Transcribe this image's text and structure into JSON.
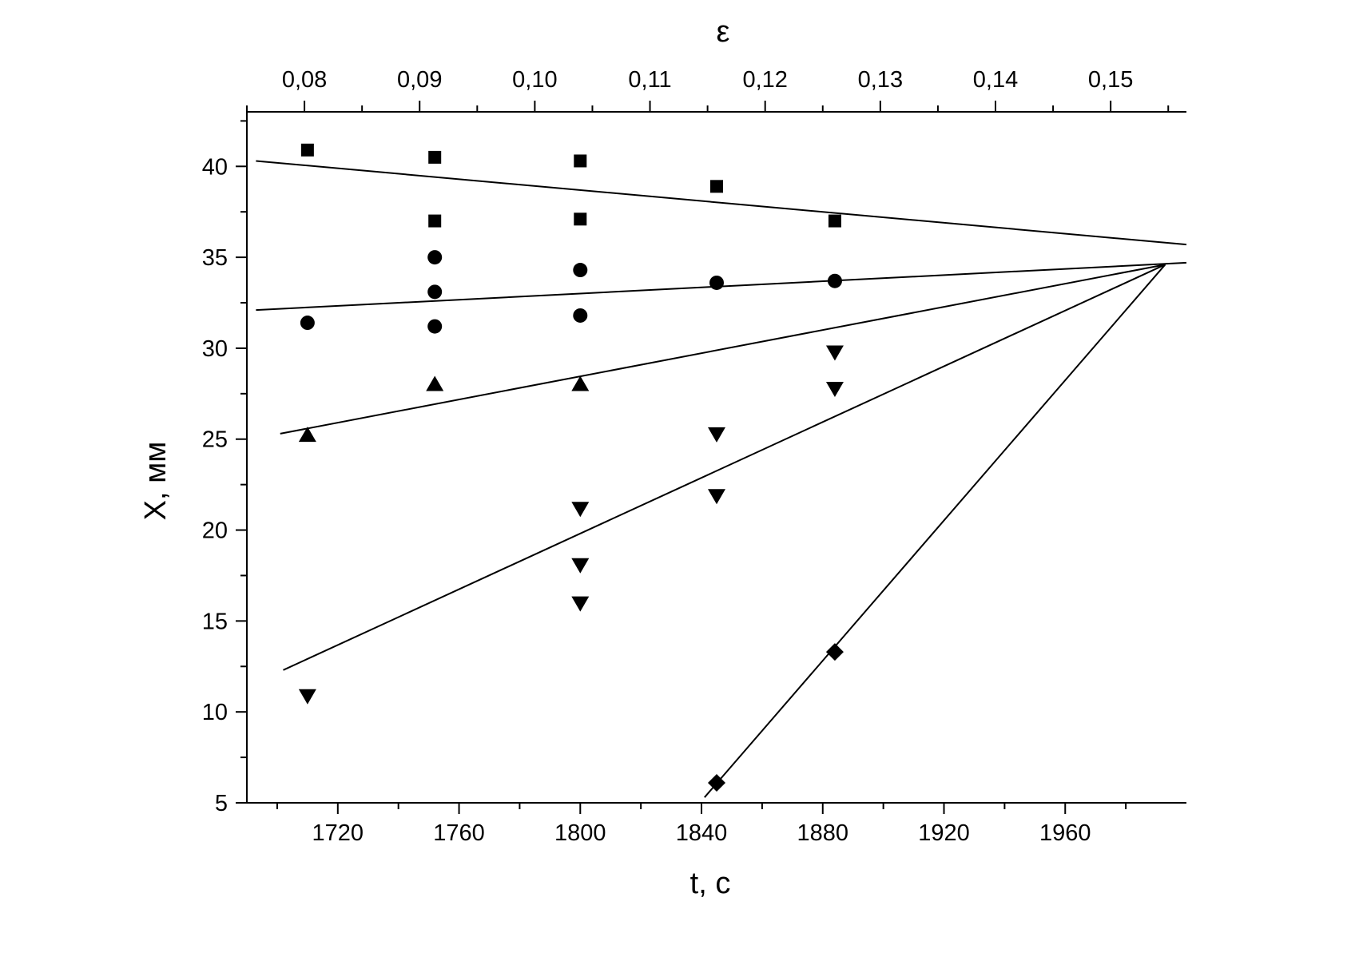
{
  "chart_data": {
    "type": "scatter",
    "title": "",
    "xlabel": "t, c",
    "ylabel": "X, мм",
    "top_axis_label": "ε",
    "xlim": [
      1690,
      2000
    ],
    "ylim": [
      5,
      43
    ],
    "x_ticks": [
      1720,
      1760,
      1800,
      1840,
      1880,
      1920,
      1960
    ],
    "y_ticks": [
      5,
      10,
      15,
      20,
      25,
      30,
      35,
      40
    ],
    "top_ticks": [
      {
        "label": "0,08",
        "t": 1709
      },
      {
        "label": "0,09",
        "t": 1747
      },
      {
        "label": "0,10",
        "t": 1785
      },
      {
        "label": "0,11",
        "t": 1823
      },
      {
        "label": "0,12",
        "t": 1861
      },
      {
        "label": "0,13",
        "t": 1899
      },
      {
        "label": "0,14",
        "t": 1937
      },
      {
        "label": "0,15",
        "t": 1975
      }
    ],
    "grid": false,
    "legend": "none",
    "series": [
      {
        "marker": "square",
        "x": [
          1710,
          1752,
          1752,
          1800,
          1800,
          1845,
          1884
        ],
        "y": [
          40.9,
          40.5,
          37.0,
          40.3,
          37.1,
          38.9,
          37.0
        ]
      },
      {
        "marker": "circle",
        "x": [
          1710,
          1752,
          1752,
          1752,
          1800,
          1800,
          1845,
          1884
        ],
        "y": [
          31.4,
          35.0,
          33.1,
          31.2,
          34.3,
          31.8,
          33.6,
          33.7
        ]
      },
      {
        "marker": "triangle-up",
        "x": [
          1710,
          1752,
          1800
        ],
        "y": [
          25.2,
          28.0,
          28.0
        ]
      },
      {
        "marker": "triangle-down",
        "x": [
          1710,
          1800,
          1800,
          1800,
          1845,
          1845,
          1884,
          1884
        ],
        "y": [
          10.9,
          21.2,
          18.1,
          16.0,
          25.3,
          21.9,
          29.8,
          27.8
        ]
      },
      {
        "marker": "diamond",
        "x": [
          1845,
          1884
        ],
        "y": [
          6.1,
          13.3
        ]
      }
    ],
    "fit_lines": [
      {
        "x": [
          1693,
          2000
        ],
        "y": [
          40.3,
          35.7
        ]
      },
      {
        "x": [
          1693,
          2000
        ],
        "y": [
          32.1,
          34.7
        ]
      },
      {
        "x": [
          1701,
          1993
        ],
        "y": [
          25.3,
          34.6
        ]
      },
      {
        "x": [
          1702,
          1993
        ],
        "y": [
          12.3,
          34.6
        ]
      },
      {
        "x": [
          1841,
          1993
        ],
        "y": [
          5.3,
          34.6
        ]
      }
    ],
    "colors": {
      "marker": "#000000",
      "line": "#000000",
      "axis": "#000000"
    }
  }
}
